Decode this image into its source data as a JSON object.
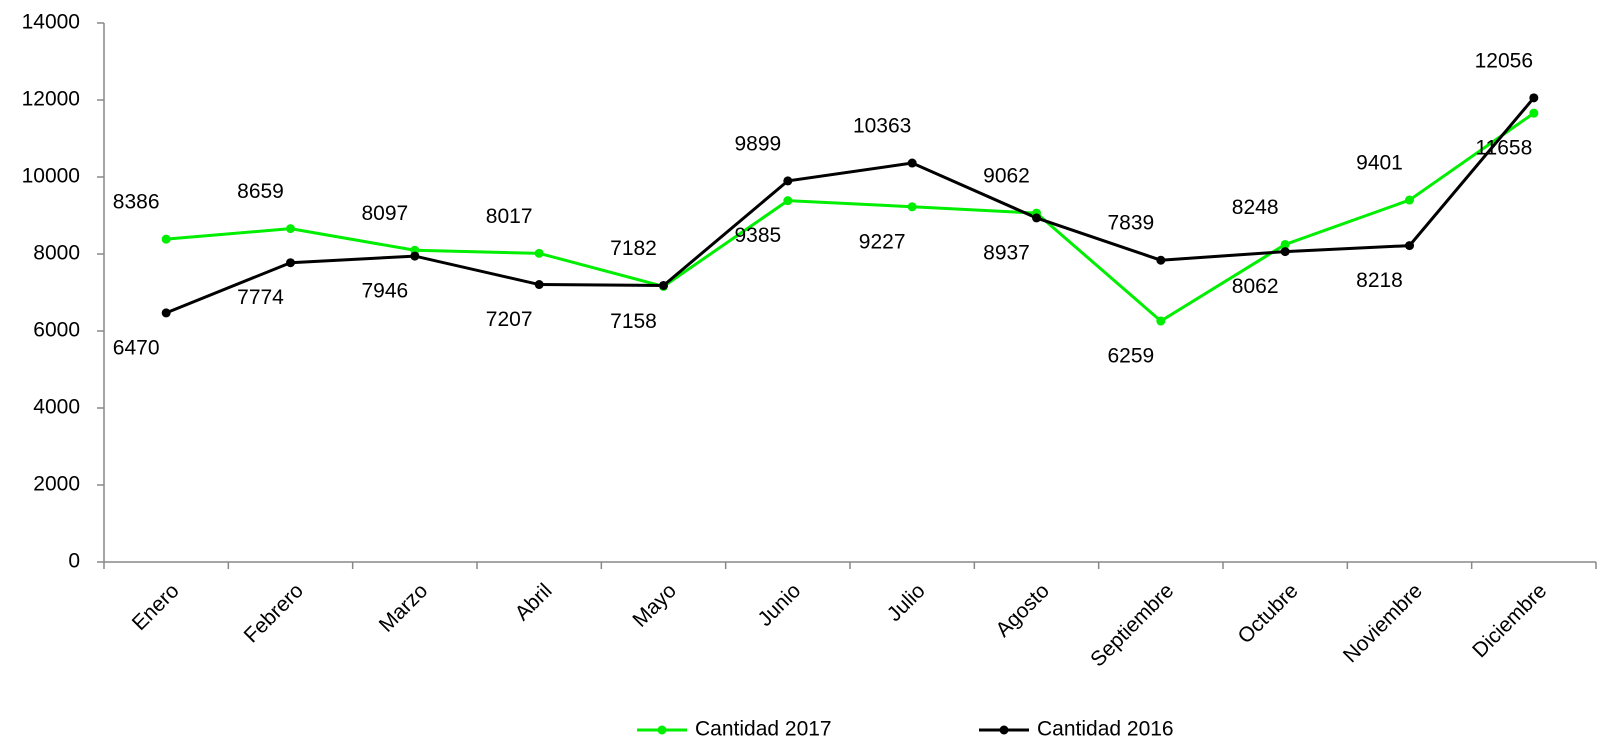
{
  "chart_data": {
    "type": "line",
    "categories": [
      "Enero",
      "Febrero",
      "Marzo",
      "Abril",
      "Mayo",
      "Junio",
      "Julio",
      "Agosto",
      "Septiembre",
      "Octubre",
      "Noviembre",
      "Diciembre"
    ],
    "series": [
      {
        "name": "Cantidad 2017",
        "color": "#00ee00",
        "values": [
          8386,
          8659,
          8097,
          8017,
          7158,
          9385,
          9227,
          9062,
          6259,
          8248,
          9401,
          11658
        ]
      },
      {
        "name": "Cantidad 2016",
        "color": "#000000",
        "values": [
          6470,
          7774,
          7946,
          7207,
          7182,
          9899,
          10363,
          8937,
          7839,
          8062,
          8218,
          12056
        ]
      }
    ],
    "ylim": [
      0,
      14000
    ],
    "yticks": [
      0,
      2000,
      4000,
      6000,
      8000,
      10000,
      12000,
      14000
    ],
    "grid": false,
    "legend": "bottom"
  }
}
